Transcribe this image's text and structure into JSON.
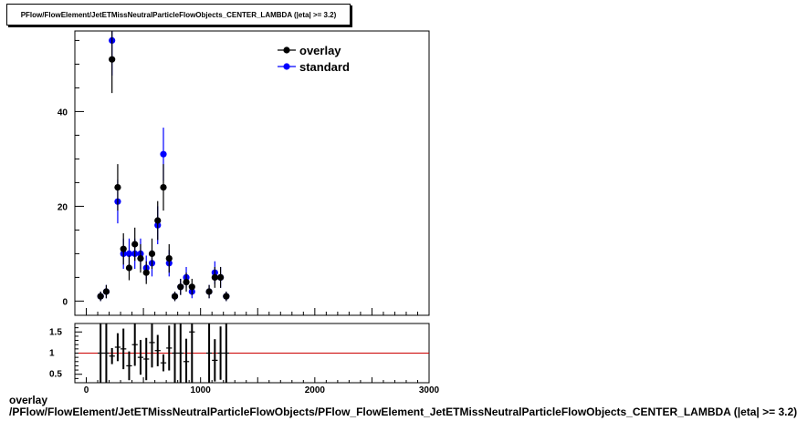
{
  "title": "PFlow/FlowElement/JetETMissNeutralParticleFlowObjects_CENTER_LAMBDA (|eta| >= 3.2)",
  "footer": {
    "line1": "overlay",
    "line2": "/PFlow/FlowElement/JetETMissNeutralParticleFlowObjects/PFlow_FlowElement_JetETMissNeutralParticleFlowObjects_CENTER_LAMBDA (|eta| >= 3.2)"
  },
  "colors": {
    "overlay": "#000000",
    "standard": "#0000ff",
    "ratio_line": "#cc0000"
  },
  "chart_data": {
    "type": "scatter",
    "xlim": [
      -100,
      3000
    ],
    "ylim": [
      -3,
      57
    ],
    "x_ticks": [
      "0",
      "1000",
      "2000",
      "3000"
    ],
    "y_ticks": [
      {
        "value": 0,
        "label": "0"
      },
      {
        "value": 20,
        "label": "20"
      },
      {
        "value": 40,
        "label": "40"
      }
    ],
    "legend": {
      "placement": "top-right",
      "entries": [
        "overlay",
        "standard"
      ]
    },
    "series": [
      {
        "name": "overlay",
        "color": "#000000",
        "points": [
          [
            125,
            1,
            1
          ],
          [
            175,
            2,
            1.4
          ],
          [
            225,
            51,
            7.1
          ],
          [
            275,
            24,
            4.9
          ],
          [
            325,
            11,
            3.3
          ],
          [
            375,
            7,
            2.6
          ],
          [
            425,
            12,
            3.5
          ],
          [
            475,
            9,
            3
          ],
          [
            525,
            6,
            2.4
          ],
          [
            575,
            10,
            3.2
          ],
          [
            625,
            17,
            4.1
          ],
          [
            675,
            24,
            4.9
          ],
          [
            725,
            9,
            3
          ],
          [
            775,
            1,
            1
          ],
          [
            825,
            3,
            1.7
          ],
          [
            875,
            4,
            2
          ],
          [
            925,
            3,
            1.7
          ],
          [
            1075,
            2,
            1.4
          ],
          [
            1125,
            5,
            2.2
          ],
          [
            1175,
            5,
            2.2
          ],
          [
            1225,
            1,
            1
          ]
        ]
      },
      {
        "name": "standard",
        "color": "#0000ff",
        "points": [
          [
            125,
            1,
            1
          ],
          [
            175,
            2,
            1.4
          ],
          [
            225,
            55,
            7.4
          ],
          [
            275,
            21,
            4.6
          ],
          [
            325,
            10,
            3.2
          ],
          [
            375,
            10,
            3.2
          ],
          [
            425,
            10,
            3.2
          ],
          [
            475,
            10,
            3.2
          ],
          [
            525,
            7,
            2.6
          ],
          [
            575,
            8,
            2.8
          ],
          [
            625,
            16,
            4
          ],
          [
            675,
            31,
            5.6
          ],
          [
            725,
            8,
            2.8
          ],
          [
            775,
            1,
            1
          ],
          [
            825,
            3,
            1.7
          ],
          [
            875,
            5,
            2.2
          ],
          [
            925,
            2,
            1.4
          ],
          [
            1075,
            2,
            1.4
          ],
          [
            1125,
            6,
            2.4
          ],
          [
            1175,
            5,
            2.2
          ],
          [
            1225,
            1,
            1
          ]
        ]
      }
    ],
    "ratio": {
      "ylim": [
        0.3,
        1.7
      ],
      "y_ticks": [
        {
          "value": 0.5,
          "label": "0.5"
        },
        {
          "value": 1,
          "label": "1"
        },
        {
          "value": 1.5,
          "label": "1.5"
        }
      ],
      "reference": 1,
      "points": [
        [
          125,
          1,
          1.4
        ],
        [
          175,
          1,
          1.0
        ],
        [
          225,
          0.93,
          0.19
        ],
        [
          275,
          1.14,
          0.33
        ],
        [
          325,
          1.1,
          0.48
        ],
        [
          375,
          0.7,
          0.34
        ],
        [
          425,
          1.2,
          0.5
        ],
        [
          475,
          0.9,
          0.41
        ],
        [
          525,
          0.86,
          0.5
        ],
        [
          575,
          1.25,
          0.59
        ],
        [
          625,
          1.06,
          0.37
        ],
        [
          675,
          0.77,
          0.2
        ],
        [
          725,
          1.12,
          0.53
        ],
        [
          775,
          1,
          1.4
        ],
        [
          825,
          1,
          0.82
        ],
        [
          875,
          0.8,
          0.54
        ],
        [
          925,
          1.5,
          1.3
        ],
        [
          1075,
          1,
          1.0
        ],
        [
          1125,
          0.83,
          0.5
        ],
        [
          1175,
          1,
          0.63
        ],
        [
          1225,
          1,
          1.4
        ]
      ]
    }
  }
}
